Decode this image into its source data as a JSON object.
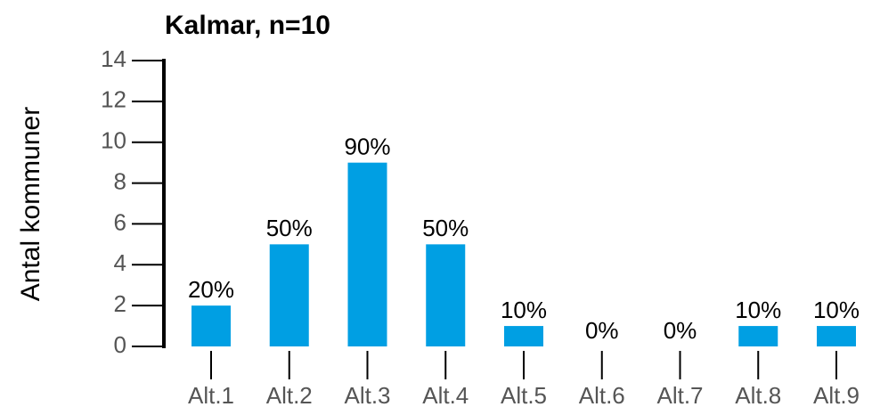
{
  "chart_data": {
    "type": "bar",
    "title": "Kalmar, n=10",
    "ylabel": "Antal kommuner",
    "categories": [
      "Alt.1",
      "Alt.2",
      "Alt.3",
      "Alt.4",
      "Alt.5",
      "Alt.6",
      "Alt.7",
      "Alt.8",
      "Alt.9"
    ],
    "values": [
      2,
      5,
      9,
      5,
      1,
      0,
      0,
      1,
      1
    ],
    "value_labels": [
      "20%",
      "50%",
      "90%",
      "50%",
      "10%",
      "0%",
      "0%",
      "10%",
      "10%"
    ],
    "color": "#009fe3",
    "ylim": [
      0,
      14
    ],
    "yticks": [
      0,
      2,
      4,
      6,
      8,
      10,
      12,
      14
    ],
    "grid": false
  }
}
